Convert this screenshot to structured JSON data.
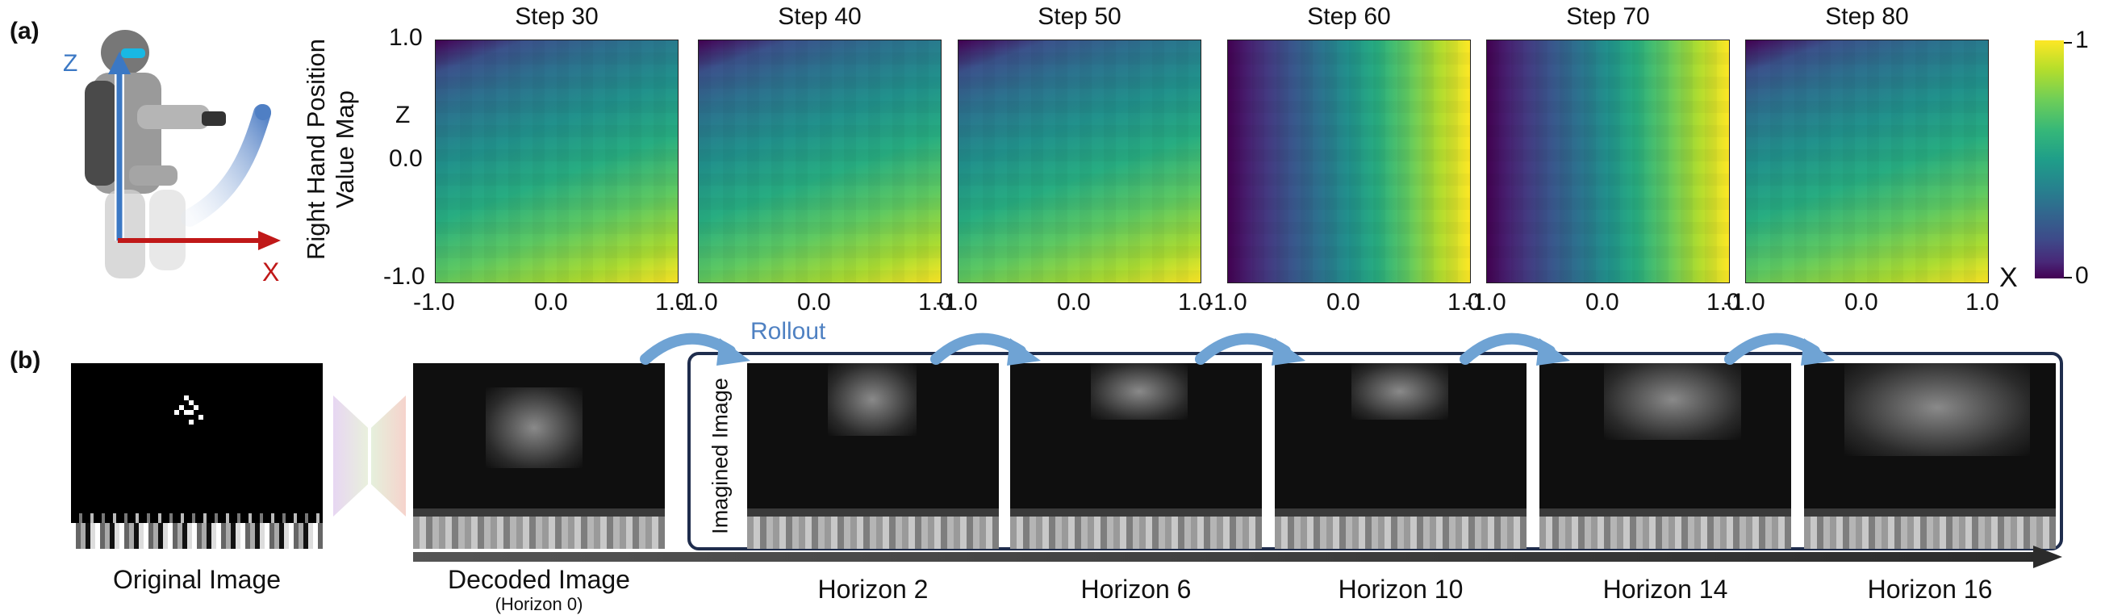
{
  "panel_a": {
    "label": "(a)",
    "robot_axes": {
      "z": "Z",
      "x": "X"
    },
    "ylabel_line1": "Right Hand Position",
    "ylabel_line2": "Value Map",
    "z_axis_label": "Z",
    "x_axis_label": "X",
    "y_ticks": [
      "1.0",
      "0.0",
      "-1.0"
    ],
    "x_ticks": [
      "-1.0",
      "0.0",
      "1.0"
    ],
    "colorbar": {
      "max_label": "1",
      "min_label": "0"
    },
    "steps": [
      {
        "title": "Step 30",
        "pattern": "diag"
      },
      {
        "title": "Step 40",
        "pattern": "diag"
      },
      {
        "title": "Step 50",
        "pattern": "diag"
      },
      {
        "title": "Step 60",
        "pattern": "horiz"
      },
      {
        "title": "Step 70",
        "pattern": "horiz"
      },
      {
        "title": "Step 80",
        "pattern": "diag"
      }
    ]
  },
  "panel_b": {
    "label": "(b)",
    "original_caption": "Original Image",
    "decoded_caption": "Decoded Image",
    "decoded_sub": "(Horizon 0)",
    "rollout_label": "Rollout",
    "imagined_label": "Imagined Image",
    "horizons": [
      "Horizon 2",
      "Horizon 6",
      "Horizon 10",
      "Horizon 14",
      "Horizon 16"
    ]
  },
  "colors": {
    "viridis_dark": "#440154",
    "viridis_mid": "#21918c",
    "viridis_bright": "#fde725",
    "arrow_blue": "#6fa3d4",
    "rollout_blue": "#4f81c2",
    "frame_border": "#1f2d4d",
    "robot_z_axis": "#3b78c4",
    "robot_x_axis": "#c01818"
  }
}
